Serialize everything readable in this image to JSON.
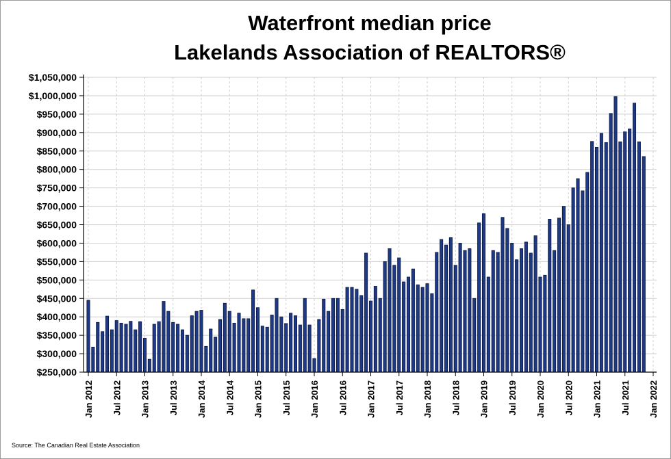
{
  "title_line1": "Waterfront median price",
  "title_line2": "Lakelands Association of REALTORS®",
  "source": "Source: The Canadian Real Estate Association",
  "colors": {
    "bar_fill": "#1f3a85",
    "bar_stroke": "#0b1640",
    "grid": "#cfcfcf",
    "axis": "#000000"
  },
  "chart_data": {
    "type": "bar",
    "title": "Waterfront median price Lakelands Association of REALTORS®",
    "xlabel": "",
    "ylabel": "",
    "ylim": [
      250000,
      1050000
    ],
    "y_ticks": [
      250000,
      300000,
      350000,
      400000,
      450000,
      500000,
      550000,
      600000,
      650000,
      700000,
      750000,
      800000,
      850000,
      900000,
      950000,
      1000000,
      1050000
    ],
    "y_tick_labels": [
      "$250,000",
      "$300,000",
      "$350,000",
      "$400,000",
      "$450,000",
      "$500,000",
      "$550,000",
      "$600,000",
      "$650,000",
      "$700,000",
      "$750,000",
      "$800,000",
      "$850,000",
      "$900,000",
      "$950,000",
      "$1,000,000",
      "$1,050,000"
    ],
    "x_tick_labels": [
      "Jan 2012",
      "Jul 2012",
      "Jan 2013",
      "Jul 2013",
      "Jan 2014",
      "Jul 2014",
      "Jan 2015",
      "Jul 2015",
      "Jan 2016",
      "Jul 2016",
      "Jan 2017",
      "Jul 2017",
      "Jan 2018",
      "Jul 2018",
      "Jan 2019",
      "Jul 2019",
      "Jan 2020",
      "Jul 2020",
      "Jan 2021",
      "Jul 2021",
      "Jan 2022"
    ],
    "start": "Jan 2012",
    "values": [
      445000,
      318000,
      385000,
      360000,
      402000,
      365000,
      390000,
      383000,
      380000,
      388000,
      365000,
      387000,
      342000,
      285000,
      380000,
      387000,
      442000,
      415000,
      385000,
      380000,
      365000,
      350000,
      403000,
      415000,
      418000,
      320000,
      367000,
      345000,
      393000,
      437000,
      415000,
      383000,
      410000,
      395000,
      395000,
      473000,
      425000,
      375000,
      372000,
      405000,
      450000,
      400000,
      382000,
      410000,
      403000,
      378000,
      450000,
      378000,
      287000,
      393000,
      448000,
      415000,
      450000,
      450000,
      420000,
      480000,
      480000,
      475000,
      458000,
      573000,
      443000,
      483000,
      450000,
      550000,
      585000,
      540000,
      560000,
      495000,
      508000,
      530000,
      487000,
      480000,
      490000,
      463000,
      575000,
      610000,
      595000,
      615000,
      540000,
      600000,
      580000,
      585000,
      450000,
      655000,
      680000,
      508000,
      580000,
      575000,
      670000,
      640000,
      600000,
      555000,
      585000,
      603000,
      573000,
      620000,
      508000,
      513000,
      665000,
      580000,
      668000,
      700000,
      650000,
      750000,
      775000,
      742000,
      792000,
      876000,
      860000,
      898000,
      873000,
      952000,
      998000,
      875000,
      902000,
      910000,
      980000,
      875000,
      835000
    ]
  }
}
